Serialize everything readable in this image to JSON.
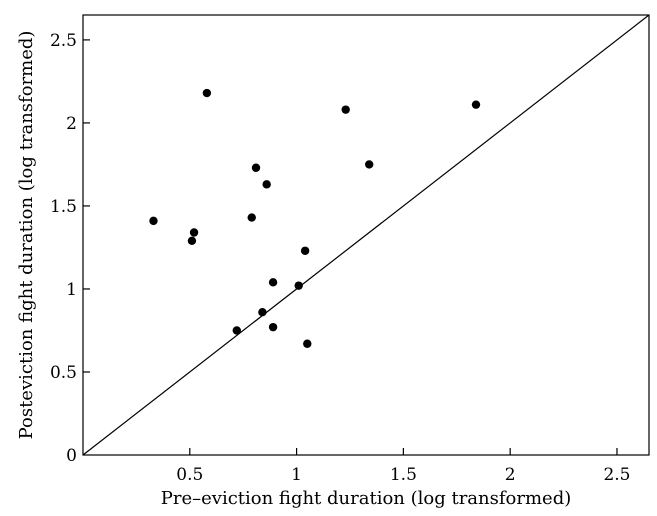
{
  "chart_data": {
    "type": "scatter",
    "title": "",
    "xlabel": "Pre–eviction fight duration (log transformed)",
    "ylabel": "Posteviction fight duration (log transformed)",
    "xlim": [
      0,
      2.65
    ],
    "ylim": [
      0,
      2.65
    ],
    "x_ticks": [
      0.5,
      1,
      1.5,
      2,
      2.5
    ],
    "x_tick_labels": [
      "0.5",
      "1",
      "1.5",
      "2",
      "2.5"
    ],
    "y_ticks": [
      0,
      0.5,
      1,
      1.5,
      2,
      2.5
    ],
    "y_tick_labels": [
      "0",
      "0.5",
      "1",
      "1.5",
      "2",
      "2.5"
    ],
    "grid": false,
    "reference_line": "y = x",
    "points": [
      {
        "x": 0.33,
        "y": 1.41
      },
      {
        "x": 0.51,
        "y": 1.29
      },
      {
        "x": 0.52,
        "y": 1.34
      },
      {
        "x": 0.58,
        "y": 2.18
      },
      {
        "x": 0.72,
        "y": 0.75
      },
      {
        "x": 0.79,
        "y": 1.43
      },
      {
        "x": 0.81,
        "y": 1.73
      },
      {
        "x": 0.84,
        "y": 0.86
      },
      {
        "x": 0.86,
        "y": 1.63
      },
      {
        "x": 0.89,
        "y": 1.04
      },
      {
        "x": 0.89,
        "y": 0.77
      },
      {
        "x": 1.01,
        "y": 1.02
      },
      {
        "x": 1.04,
        "y": 1.23
      },
      {
        "x": 1.05,
        "y": 0.67
      },
      {
        "x": 1.23,
        "y": 2.08
      },
      {
        "x": 1.34,
        "y": 1.75
      },
      {
        "x": 1.84,
        "y": 2.11
      }
    ]
  }
}
